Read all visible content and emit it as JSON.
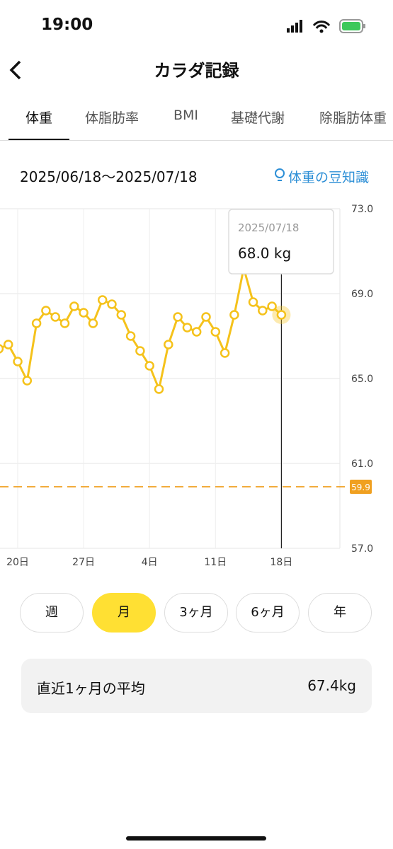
{
  "status_bar": {
    "time": "19:00"
  },
  "header": {
    "title": "カラダ記録"
  },
  "tabs": {
    "items": [
      "体重",
      "体脂肪率",
      "BMI",
      "基礎代謝",
      "除脂肪体重"
    ],
    "active": 0
  },
  "period": {
    "range": "2025/06/18〜2025/07/18",
    "tip": "体重の豆知識"
  },
  "chart_data": {
    "type": "line",
    "color": "#f5c21b",
    "categories": [
      null,
      null,
      "20日",
      null,
      null,
      null,
      null,
      null,
      null,
      "27日",
      null,
      null,
      null,
      null,
      null,
      null,
      "4日",
      null,
      null,
      null,
      null,
      null,
      null,
      "11日",
      null,
      null,
      null,
      null,
      null,
      null,
      "18日"
    ],
    "values": [
      66.4,
      66.6,
      65.8,
      64.9,
      67.6,
      68.2,
      67.9,
      67.6,
      68.4,
      68.1,
      67.6,
      68.7,
      68.5,
      68.0,
      67.0,
      66.3,
      65.6,
      64.5,
      66.6,
      67.9,
      67.4,
      67.2,
      67.9,
      67.2,
      66.2,
      68.0,
      70.2,
      68.6,
      68.2,
      68.4,
      68.0
    ],
    "ylim": [
      57,
      73
    ],
    "yticks": [
      {
        "value": 57,
        "label": "57.0"
      },
      {
        "value": 61,
        "label": "61.0"
      },
      {
        "value": 65,
        "label": "65.0"
      },
      {
        "value": 69,
        "label": "69.0"
      },
      {
        "value": 73,
        "label": "73.0"
      }
    ],
    "grid": true,
    "reference_line": {
      "value": 59.9,
      "color": "#f0a020"
    },
    "highlight": {
      "date": "2025/07/18",
      "value": 68.0,
      "label": "68.0 kg"
    }
  },
  "range_buttons": {
    "items": [
      "週",
      "月",
      "3ヶ月",
      "6ヶ月",
      "年"
    ],
    "active": 1
  },
  "summary": {
    "label": "直近1ヶ月の平均",
    "value": "67.4kg"
  }
}
